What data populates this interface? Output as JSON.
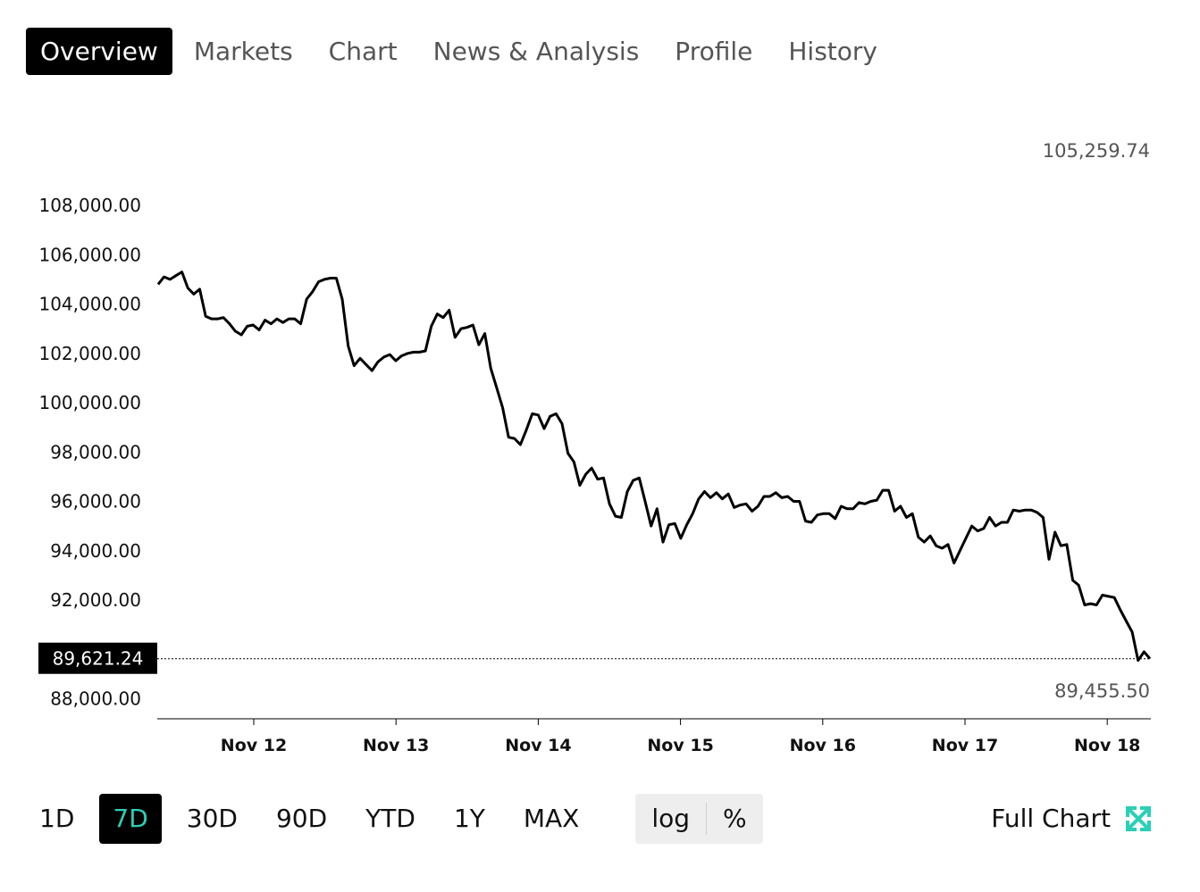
{
  "tabs": [
    {
      "label": "Overview",
      "active": true
    },
    {
      "label": "Markets",
      "active": false
    },
    {
      "label": "Chart",
      "active": false
    },
    {
      "label": "News & Analysis",
      "active": false
    },
    {
      "label": "Profile",
      "active": false
    },
    {
      "label": "History",
      "active": false
    }
  ],
  "ranges": [
    {
      "label": "1D",
      "active": false
    },
    {
      "label": "7D",
      "active": true
    },
    {
      "label": "30D",
      "active": false
    },
    {
      "label": "90D",
      "active": false
    },
    {
      "label": "YTD",
      "active": false
    },
    {
      "label": "1Y",
      "active": false
    },
    {
      "label": "MAX",
      "active": false
    }
  ],
  "toggles": {
    "log": "log",
    "percent": "%"
  },
  "full_chart": {
    "label": "Full Chart",
    "icon": "expand-icon",
    "icon_color": "#2ad0b5"
  },
  "colors": {
    "line": "#000000",
    "accent": "#2ad0b5",
    "current_label_bg": "#000000"
  },
  "chart_data": {
    "type": "line",
    "title": "",
    "xlabel": "",
    "ylabel": "",
    "ylim": [
      87200,
      109000
    ],
    "x_ticks": [
      "Nov 12",
      "Nov 13",
      "Nov 14",
      "Nov 15",
      "Nov 16",
      "Nov 17",
      "Nov 18"
    ],
    "y_ticks": [
      "108,000.00",
      "106,000.00",
      "104,000.00",
      "102,000.00",
      "100,000.00",
      "98,000.00",
      "96,000.00",
      "94,000.00",
      "92,000.00",
      "88,000.00"
    ],
    "y_tick_values": [
      108000,
      106000,
      104000,
      102000,
      100000,
      98000,
      96000,
      94000,
      92000,
      88000
    ],
    "high_label": "105,259.74",
    "low_label": "89,455.50",
    "current_label": "89,621.24",
    "current_value": 89621.24,
    "grid": false,
    "series": [
      {
        "values": [
          104800,
          105100,
          105000,
          105150,
          105300,
          104650,
          104400,
          104600,
          103500,
          103400,
          103400,
          103450,
          103200,
          102900,
          102750,
          103100,
          103150,
          102950,
          103350,
          103200,
          103400,
          103250,
          103400,
          103400,
          103200,
          104200,
          104500,
          104900,
          105000,
          105050,
          105050,
          104200,
          102300,
          101500,
          101800,
          101550,
          101300,
          101650,
          101850,
          101950,
          101700,
          101900,
          102000,
          102050,
          102050,
          102100,
          103100,
          103600,
          103450,
          103750,
          102650,
          103000,
          103050,
          103150,
          102350,
          102800,
          101400,
          100600,
          99800,
          98600,
          98550,
          98300,
          98900,
          99550,
          99500,
          98950,
          99450,
          99550,
          99150,
          97950,
          97600,
          96650,
          97100,
          97350,
          96900,
          96950,
          95900,
          95400,
          95350,
          96400,
          96850,
          96950,
          96000,
          95000,
          95700,
          94350,
          95050,
          95100,
          94500,
          95050,
          95500,
          96100,
          96400,
          96150,
          96350,
          96100,
          96300,
          95750,
          95850,
          95900,
          95600,
          95800,
          96200,
          96200,
          96350,
          96150,
          96200,
          96000,
          96000,
          95200,
          95150,
          95450,
          95500,
          95500,
          95300,
          95800,
          95700,
          95700,
          95950,
          95900,
          96000,
          96050,
          96450,
          96450,
          95600,
          95800,
          95350,
          95500,
          94550,
          94350,
          94600,
          94200,
          94100,
          94250,
          93500,
          94000,
          94500,
          95000,
          94800,
          94900,
          95350,
          95000,
          95150,
          95150,
          95650,
          95600,
          95650,
          95650,
          95550,
          95350,
          93650,
          94750,
          94200,
          94250,
          92800,
          92600,
          91800,
          91850,
          91800,
          92200,
          92150,
          92100,
          91600,
          91150,
          90700,
          89550,
          89900,
          89621.24
        ]
      }
    ]
  }
}
